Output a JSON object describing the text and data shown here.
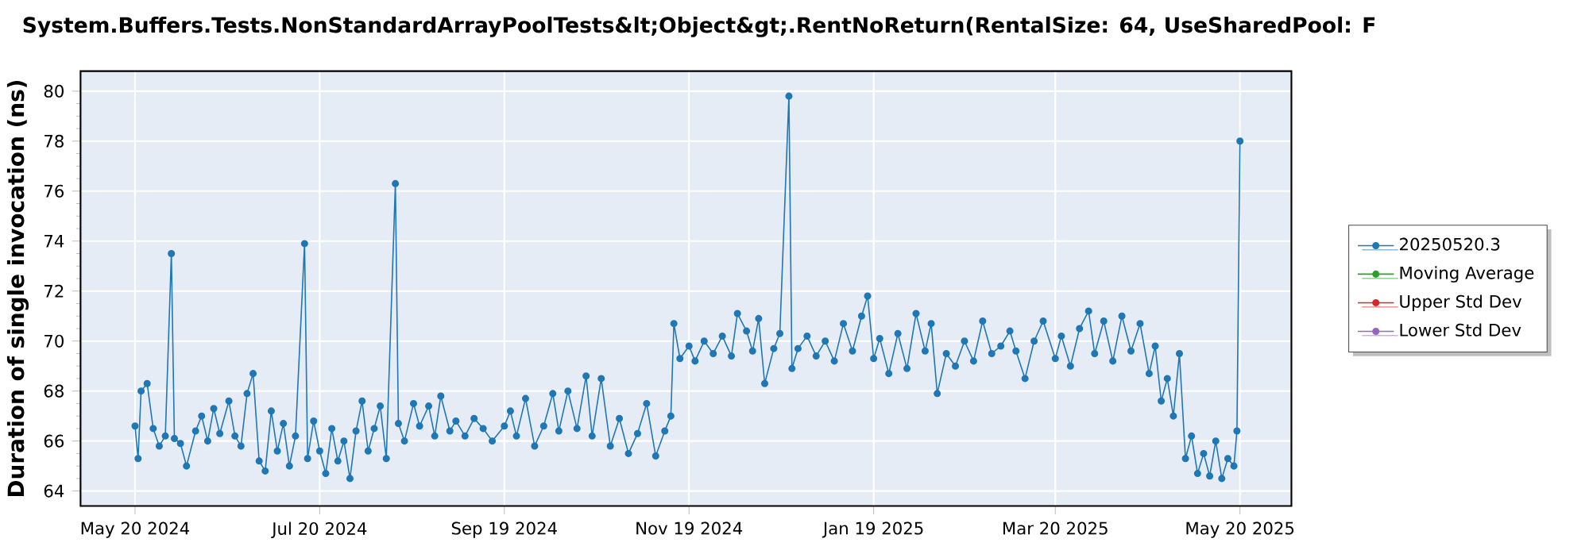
{
  "chart_data": {
    "type": "line",
    "title": "System.Buffers.Tests.NonStandardArrayPoolTests&lt;Object&gt;.RentNoReturn(RentalSize: 64, UseSharedPool: F",
    "ylabel": "Duration of single invocation (ns)",
    "xlim": [
      "2024-05-02",
      "2025-06-06"
    ],
    "ylim": [
      63.4,
      80.8
    ],
    "xticks": [
      {
        "value": "2024-05-20",
        "label": "May 20 2024"
      },
      {
        "value": "2024-07-20",
        "label": "Jul 20 2024"
      },
      {
        "value": "2024-09-19",
        "label": "Sep 19 2024"
      },
      {
        "value": "2024-11-19",
        "label": "Nov 19 2024"
      },
      {
        "value": "2025-01-19",
        "label": "Jan 19 2025"
      },
      {
        "value": "2025-03-20",
        "label": "Mar 20 2025"
      },
      {
        "value": "2025-05-20",
        "label": "May 20 2025"
      }
    ],
    "yticks": [
      64,
      66,
      68,
      70,
      72,
      74,
      76,
      78,
      80
    ],
    "grid": true,
    "legend": "right",
    "marker": "circle",
    "line_style": "solid",
    "series": [
      {
        "name": "20250520.3",
        "color": "#1f77b4",
        "x": [
          "2024-05-20",
          "2024-05-21",
          "2024-05-22",
          "2024-05-24",
          "2024-05-26",
          "2024-05-28",
          "2024-05-30",
          "2024-06-01",
          "2024-06-02",
          "2024-06-04",
          "2024-06-06",
          "2024-06-09",
          "2024-06-11",
          "2024-06-13",
          "2024-06-15",
          "2024-06-17",
          "2024-06-20",
          "2024-06-22",
          "2024-06-24",
          "2024-06-26",
          "2024-06-28",
          "2024-06-30",
          "2024-07-02",
          "2024-07-04",
          "2024-07-06",
          "2024-07-08",
          "2024-07-10",
          "2024-07-12",
          "2024-07-15",
          "2024-07-16",
          "2024-07-18",
          "2024-07-20",
          "2024-07-22",
          "2024-07-24",
          "2024-07-26",
          "2024-07-28",
          "2024-07-30",
          "2024-08-01",
          "2024-08-03",
          "2024-08-05",
          "2024-08-07",
          "2024-08-09",
          "2024-08-11",
          "2024-08-14",
          "2024-08-15",
          "2024-08-17",
          "2024-08-20",
          "2024-08-22",
          "2024-08-25",
          "2024-08-27",
          "2024-08-29",
          "2024-09-01",
          "2024-09-03",
          "2024-09-06",
          "2024-09-09",
          "2024-09-12",
          "2024-09-15",
          "2024-09-19",
          "2024-09-21",
          "2024-09-23",
          "2024-09-26",
          "2024-09-29",
          "2024-10-02",
          "2024-10-05",
          "2024-10-07",
          "2024-10-10",
          "2024-10-13",
          "2024-10-16",
          "2024-10-18",
          "2024-10-21",
          "2024-10-24",
          "2024-10-27",
          "2024-10-30",
          "2024-11-02",
          "2024-11-05",
          "2024-11-08",
          "2024-11-11",
          "2024-11-13",
          "2024-11-14",
          "2024-11-16",
          "2024-11-19",
          "2024-11-21",
          "2024-11-24",
          "2024-11-27",
          "2024-11-30",
          "2024-12-03",
          "2024-12-05",
          "2024-12-08",
          "2024-12-10",
          "2024-12-12",
          "2024-12-14",
          "2024-12-17",
          "2024-12-19",
          "2024-12-22",
          "2024-12-23",
          "2024-12-25",
          "2024-12-28",
          "2024-12-31",
          "2025-01-03",
          "2025-01-06",
          "2025-01-09",
          "2025-01-12",
          "2025-01-15",
          "2025-01-17",
          "2025-01-19",
          "2025-01-21",
          "2025-01-24",
          "2025-01-27",
          "2025-01-30",
          "2025-02-02",
          "2025-02-05",
          "2025-02-07",
          "2025-02-09",
          "2025-02-12",
          "2025-02-15",
          "2025-02-18",
          "2025-02-21",
          "2025-02-24",
          "2025-02-27",
          "2025-03-02",
          "2025-03-05",
          "2025-03-07",
          "2025-03-10",
          "2025-03-13",
          "2025-03-16",
          "2025-03-20",
          "2025-03-22",
          "2025-03-25",
          "2025-03-28",
          "2025-03-31",
          "2025-04-02",
          "2025-04-05",
          "2025-04-08",
          "2025-04-11",
          "2025-04-14",
          "2025-04-17",
          "2025-04-20",
          "2025-04-22",
          "2025-04-24",
          "2025-04-26",
          "2025-04-28",
          "2025-04-30",
          "2025-05-02",
          "2025-05-04",
          "2025-05-06",
          "2025-05-08",
          "2025-05-10",
          "2025-05-12",
          "2025-05-14",
          "2025-05-16",
          "2025-05-18",
          "2025-05-19",
          "2025-05-20"
        ],
        "values": [
          66.6,
          65.3,
          68.0,
          68.3,
          66.5,
          65.8,
          66.2,
          73.5,
          66.1,
          65.9,
          65.0,
          66.4,
          67.0,
          66.0,
          67.3,
          66.3,
          67.6,
          66.2,
          65.8,
          67.9,
          68.7,
          65.2,
          64.8,
          67.2,
          65.6,
          66.7,
          65.0,
          66.2,
          73.9,
          65.3,
          66.8,
          65.6,
          64.7,
          66.5,
          65.2,
          66.0,
          64.5,
          66.4,
          67.6,
          65.6,
          66.5,
          67.4,
          65.3,
          76.3,
          66.7,
          66.0,
          67.5,
          66.6,
          67.4,
          66.2,
          67.8,
          66.4,
          66.8,
          66.2,
          66.9,
          66.5,
          66.0,
          66.6,
          67.2,
          66.2,
          67.7,
          65.8,
          66.6,
          67.9,
          66.4,
          68.0,
          66.5,
          68.6,
          66.2,
          68.5,
          65.8,
          66.9,
          65.5,
          66.3,
          67.5,
          65.4,
          66.4,
          67.0,
          70.7,
          69.3,
          69.8,
          69.2,
          70.0,
          69.5,
          70.2,
          69.4,
          71.1,
          70.4,
          69.6,
          70.9,
          68.3,
          69.7,
          70.3,
          79.8,
          68.9,
          69.7,
          70.2,
          69.4,
          70.0,
          69.2,
          70.7,
          69.6,
          71.0,
          71.8,
          69.3,
          70.1,
          68.7,
          70.3,
          68.9,
          71.1,
          69.6,
          70.7,
          67.9,
          69.5,
          69.0,
          70.0,
          69.2,
          70.8,
          69.5,
          69.8,
          70.4,
          69.6,
          68.5,
          70.0,
          70.8,
          69.3,
          70.2,
          69.0,
          70.5,
          71.2,
          69.5,
          70.8,
          69.2,
          71.0,
          69.6,
          70.7,
          68.7,
          69.8,
          67.6,
          68.5,
          67.0,
          69.5,
          65.3,
          66.2,
          64.7,
          65.5,
          64.6,
          66.0,
          64.5,
          65.3,
          65.0,
          66.4,
          78.0
        ]
      },
      {
        "name": "Moving Average",
        "color": "#2ca02c"
      },
      {
        "name": "Upper Std Dev",
        "color": "#d62728"
      },
      {
        "name": "Lower Std Dev",
        "color": "#9467bd"
      }
    ]
  }
}
